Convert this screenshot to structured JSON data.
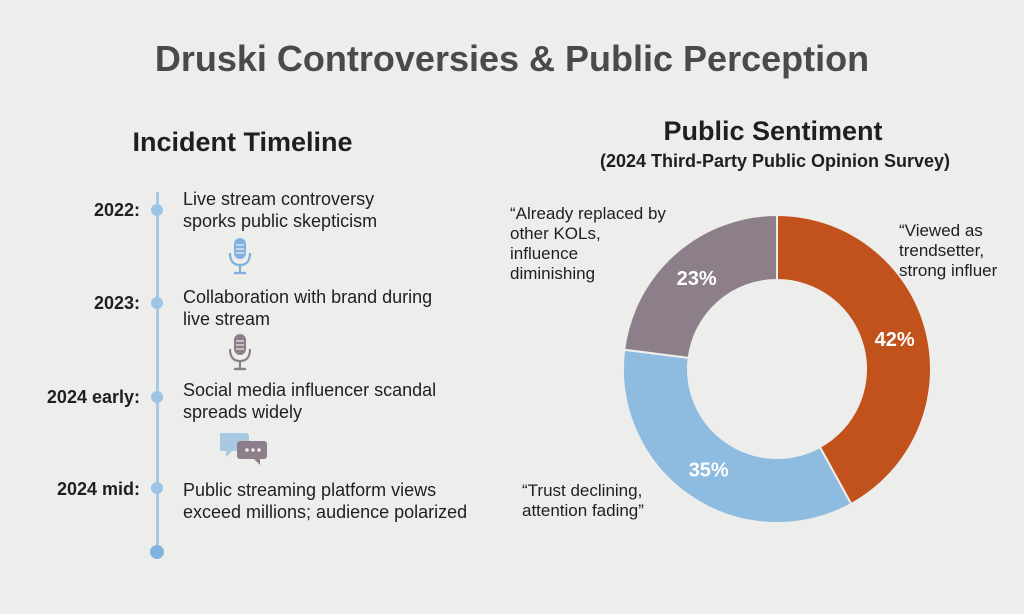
{
  "title": "Druski Controversies & Public Perception",
  "timeline": {
    "heading": "Incident Timeline",
    "events": [
      {
        "year": "2022:",
        "text_lines": [
          "Live stream controversy",
          "sporks public skepticism"
        ],
        "icon": "microphone-icon-blue"
      },
      {
        "year": "2023:",
        "text_lines": [
          "Collaboration with brand during",
          "live stream"
        ],
        "icon": "microphone-icon-mauve"
      },
      {
        "year": "2024 early:",
        "text_lines": [
          "Social media influencer scandal",
          "spreads widely"
        ],
        "icon": "chat-bubbles-icon"
      },
      {
        "year": "2024 mid:",
        "text_lines": [
          "Public streaming platform views",
          "exceed millions; audience polarized"
        ]
      }
    ]
  },
  "chart_data": {
    "type": "pie",
    "variant": "donut",
    "title": "Public Sentiment",
    "subtitle": "(2024 Third-Party Public Opinion Survey)",
    "slices": [
      {
        "label_lines": [
          "“Viewed as",
          "trendsetter,",
          "strong influer"
        ],
        "value": 42,
        "display": "42%",
        "color": "#c2521b"
      },
      {
        "label_lines": [
          "“Trust declining,",
          "attention fading”"
        ],
        "value": 35,
        "display": "35%",
        "color": "#8ebbe0"
      },
      {
        "label_lines": [
          "“Already replaced by",
          "other KOLs,",
          "influence",
          "diminishing"
        ],
        "value": 23,
        "display": "23%",
        "color": "#8d7f89"
      }
    ]
  },
  "colors": {
    "timeline_line": "#a9c9e3",
    "icon_blue": "#7fb2de",
    "icon_mauve": "#8d7f89"
  }
}
